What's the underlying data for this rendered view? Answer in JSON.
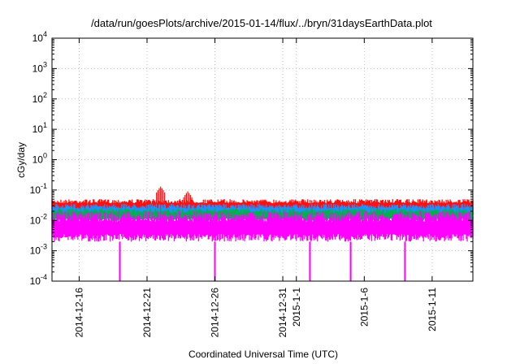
{
  "chart_data": {
    "type": "area",
    "title": "/data/run/goesPlots/archive/2015-01-14/flux/../bryn/31daysEarthData.plot",
    "xlabel": "Coordinated Universal Time (UTC)",
    "ylabel": "cGy/day",
    "y_scale": "log",
    "ylim": [
      0.0001,
      10000
    ],
    "xlim": [
      "2014-12-14",
      "2015-01-14"
    ],
    "grid": true,
    "y_ticks": [
      {
        "value": 0.0001,
        "base": "10",
        "exp": "-4"
      },
      {
        "value": 0.001,
        "base": "10",
        "exp": "-3"
      },
      {
        "value": 0.01,
        "base": "10",
        "exp": "-2"
      },
      {
        "value": 0.1,
        "base": "10",
        "exp": "-1"
      },
      {
        "value": 1,
        "base": "10",
        "exp": "0"
      },
      {
        "value": 10,
        "base": "10",
        "exp": "1"
      },
      {
        "value": 100,
        "base": "10",
        "exp": "2"
      },
      {
        "value": 1000,
        "base": "10",
        "exp": "3"
      },
      {
        "value": 10000,
        "base": "10",
        "exp": "4"
      }
    ],
    "x_ticks": [
      {
        "date": "2014-12-16",
        "label": "2014-12-16"
      },
      {
        "date": "2014-12-21",
        "label": "2014-12-21"
      },
      {
        "date": "2014-12-26",
        "label": "2014-12-26"
      },
      {
        "date": "2014-12-31",
        "label": "2014-12-31"
      },
      {
        "date": "2015-01-01",
        "label": "2015-1-1"
      },
      {
        "date": "2015-01-06",
        "label": "2015-1-6"
      },
      {
        "date": "2015-01-11",
        "label": "2015-1-11"
      }
    ],
    "series": [
      {
        "color": "#ff1010",
        "band": [
          0.02,
          0.05
        ],
        "spikes": [
          {
            "date": "2014-12-22",
            "value": 0.13
          },
          {
            "date": "2014-12-24",
            "value": 0.09
          }
        ]
      },
      {
        "color": "#2090ff",
        "band": [
          0.012,
          0.035
        ]
      },
      {
        "color": "#00b050",
        "band": [
          0.009,
          0.025
        ]
      },
      {
        "color": "#ff00ff",
        "band": [
          0.002,
          0.02
        ],
        "dips": [
          "2014-12-19",
          "2014-12-26",
          "2015-01-02",
          "2015-01-05",
          "2015-01-09"
        ]
      }
    ]
  }
}
